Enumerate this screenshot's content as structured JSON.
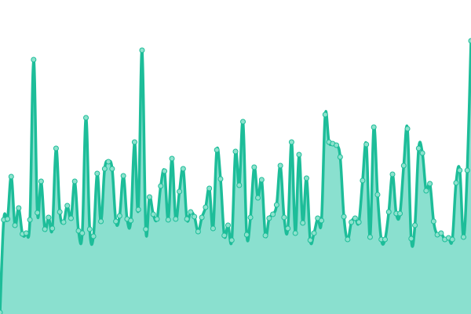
{
  "chart_data": {
    "type": "area",
    "title": "",
    "xlabel": "",
    "ylabel": "",
    "ylim": [
      0,
      400
    ],
    "grid": false,
    "legend": "none",
    "colors": {
      "line": "#1dbd99",
      "fill": "#8ae0cf",
      "marker_fill": "#8de2cd",
      "marker_stroke": "#1dbd99"
    },
    "values": [
      2,
      120,
      121,
      175,
      113,
      135,
      102,
      103,
      120,
      324,
      129,
      169,
      108,
      123,
      109,
      211,
      130,
      117,
      138,
      122,
      169,
      106,
      103,
      250,
      108,
      99,
      179,
      118,
      185,
      194,
      185,
      118,
      125,
      176,
      121,
      119,
      219,
      133,
      336,
      108,
      149,
      127,
      121,
      163,
      182,
      120,
      198,
      121,
      156,
      185,
      121,
      130,
      124,
      105,
      123,
      136,
      160,
      109,
      209,
      172,
      100,
      113,
      94,
      207,
      164,
      245,
      101,
      123,
      187,
      148,
      171,
      100,
      122,
      127,
      139,
      189,
      123,
      109,
      219,
      103,
      203,
      116,
      173,
      94,
      103,
      122,
      119,
      254,
      219,
      217,
      215,
      200,
      124,
      95,
      117,
      122,
      117,
      170,
      216,
      98,
      238,
      152,
      95,
      95,
      130,
      178,
      128,
      128,
      189,
      236,
      96,
      113,
      211,
      205,
      157,
      166,
      118,
      101,
      103,
      95,
      97,
      95,
      167,
      183,
      98,
      183,
      348
    ]
  }
}
